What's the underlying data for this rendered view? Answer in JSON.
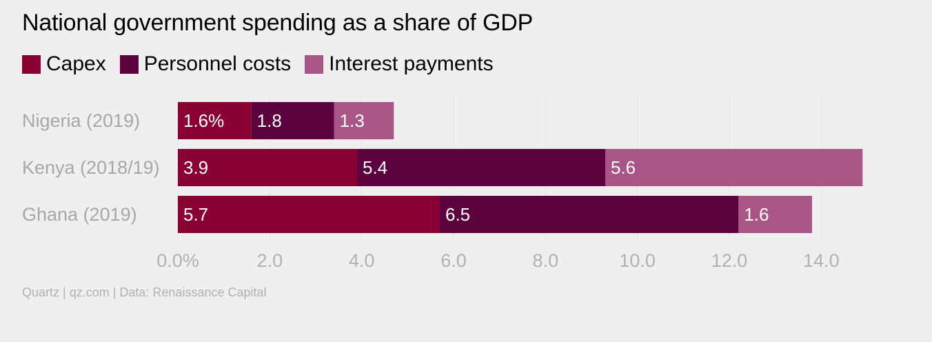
{
  "title": "National government spending as a share of GDP",
  "source": "Quartz | qz.com | Data: Renaissance Capital",
  "colors": {
    "background": "#f0eeee",
    "grid": "#e3e1e1",
    "category_text": "#a9a6a6",
    "tick_text": "#b3b0b0",
    "bar_label": "#ffffff"
  },
  "chart_data": {
    "type": "bar",
    "orientation": "horizontal",
    "stacked": true,
    "categories": [
      "Nigeria (2019)",
      "Kenya (2018/19)",
      "Ghana (2019)"
    ],
    "series": [
      {
        "name": "Capex",
        "color": "#8a0033",
        "values": [
          1.6,
          3.9,
          5.7
        ],
        "labels": [
          "1.6%",
          "3.9",
          "5.7"
        ]
      },
      {
        "name": "Personnel costs",
        "color": "#5c033f",
        "values": [
          1.8,
          5.4,
          6.5
        ],
        "labels": [
          "1.8",
          "5.4",
          "6.5"
        ]
      },
      {
        "name": "Interest payments",
        "color": "#a95585",
        "values": [
          1.3,
          5.6,
          1.6
        ],
        "labels": [
          "1.3",
          "5.6",
          "1.6"
        ]
      }
    ],
    "xlim": [
      0,
      15
    ],
    "xticks": [
      0,
      2,
      4,
      6,
      8,
      10,
      12,
      14
    ],
    "xtick_labels": [
      "0.0%",
      "2.0",
      "4.0",
      "6.0",
      "8.0",
      "10.0",
      "12.0",
      "14.0"
    ],
    "grid": true,
    "legend_position": "top-left"
  }
}
